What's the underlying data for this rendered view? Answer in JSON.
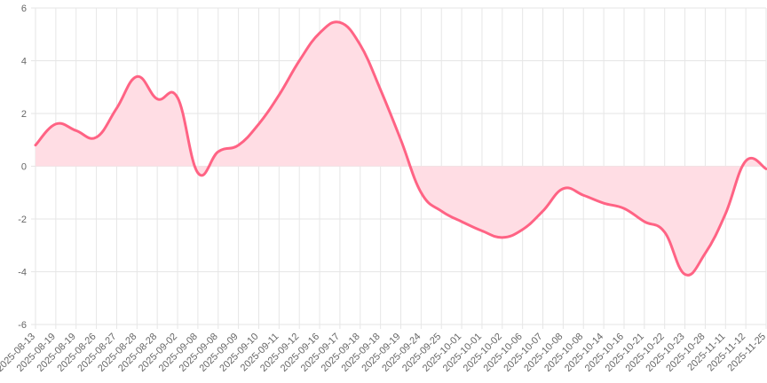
{
  "chart_data": {
    "type": "area",
    "title": "",
    "xlabel": "",
    "ylabel": "",
    "ylim": [
      -6,
      6
    ],
    "yticks": [
      "6",
      "4",
      "2",
      "0",
      "-2",
      "-4",
      "-6"
    ],
    "grid": true,
    "legend": "none",
    "colors": {
      "line": "#ff6384",
      "fill": "#ffdde4",
      "grid": "#e6e6e6",
      "axis_text": "#666666"
    },
    "x": [
      "2025-08-13",
      "2025-08-19",
      "2025-08-19",
      "2025-08-26",
      "2025-08-27",
      "2025-08-28",
      "2025-08-28",
      "2025-09-02",
      "2025-09-08",
      "2025-09-08",
      "2025-09-09",
      "2025-09-10",
      "2025-09-11",
      "2025-09-12",
      "2025-09-16",
      "2025-09-17",
      "2025-09-18",
      "2025-09-18",
      "2025-09-19",
      "2025-09-24",
      "2025-09-25",
      "2025-10-01",
      "2025-10-01",
      "2025-10-02",
      "2025-10-06",
      "2025-10-07",
      "2025-10-08",
      "2025-10-08",
      "2025-10-14",
      "2025-10-16",
      "2025-10-21",
      "2025-10-22",
      "2025-10-23",
      "2025-10-28",
      "2025-11-11",
      "2025-11-12",
      "2025-11-25"
    ],
    "series": [
      {
        "values": [
          0.8,
          1.6,
          1.35,
          1.1,
          2.2,
          3.4,
          2.55,
          2.6,
          -0.25,
          0.55,
          0.8,
          1.6,
          2.7,
          4.0,
          5.05,
          5.45,
          4.6,
          2.9,
          1.0,
          -1.0,
          -1.7,
          -2.1,
          -2.45,
          -2.7,
          -2.4,
          -1.7,
          -0.85,
          -1.1,
          -1.4,
          -1.6,
          -2.1,
          -2.5,
          -4.1,
          -3.3,
          -1.8,
          0.2,
          -0.1
        ]
      }
    ]
  }
}
